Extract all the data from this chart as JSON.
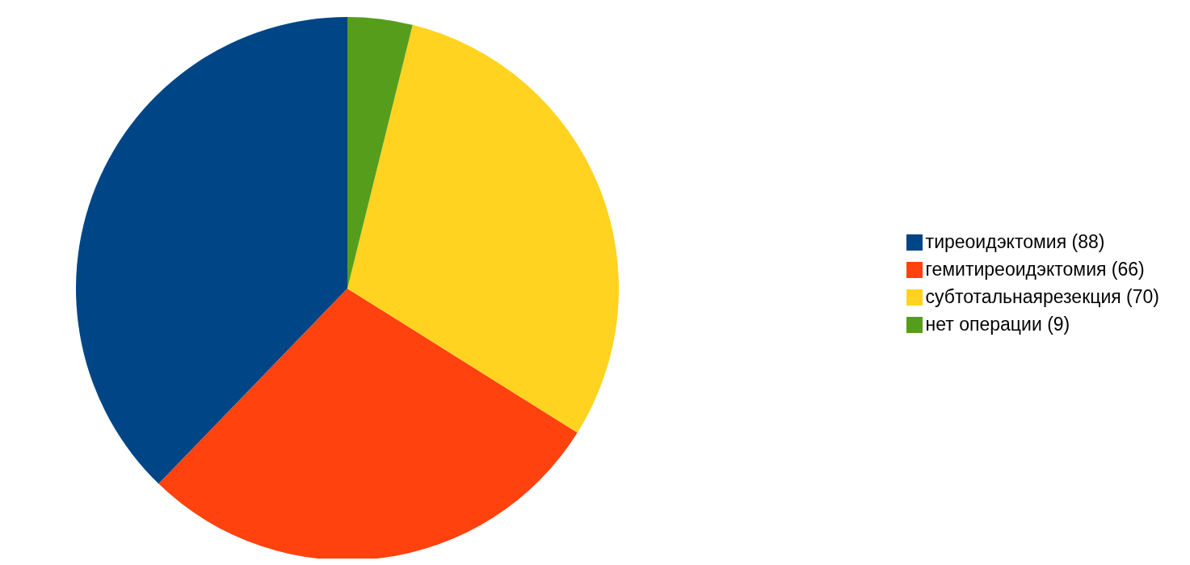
{
  "chart_data": {
    "type": "pie",
    "categories": [
      "тиреоидэктомия (88)",
      "гемитиреоидэктомия (66)",
      "субтотальнаярезекция (70)",
      "нет операции (9)"
    ],
    "values": [
      88,
      66,
      70,
      9
    ],
    "colors": [
      "#004586",
      "#ff420e",
      "#ffd320",
      "#579d1c"
    ],
    "legend": "right"
  }
}
